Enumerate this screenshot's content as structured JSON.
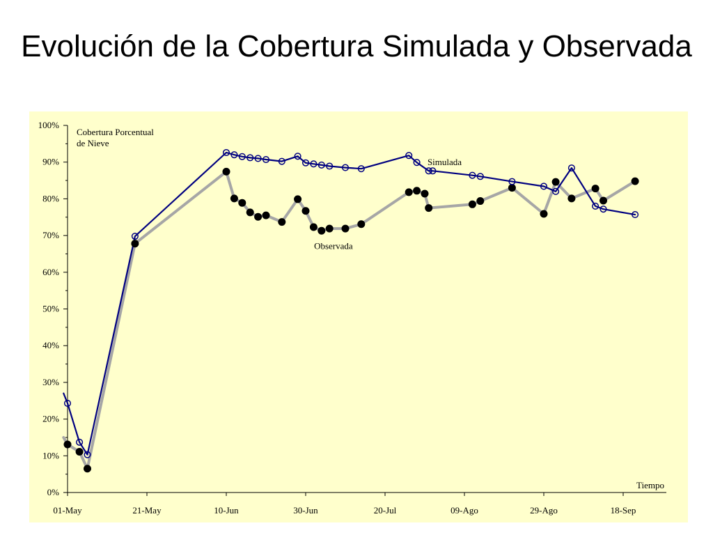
{
  "slide": {
    "title": "Evolución de la Cobertura Simulada y Observada"
  },
  "chart_data": {
    "type": "line",
    "title": "Evolución de la Cobertura Simulada y Observada",
    "ylabel": "Cobertura Porcentual de Nieve",
    "ylabel_lines": [
      "Cobertura Porcentual",
      "de Nieve"
    ],
    "xlabel": "Tiempo",
    "ylim": [
      0,
      100
    ],
    "y_ticks": [
      0,
      10,
      20,
      30,
      40,
      50,
      60,
      70,
      80,
      90,
      100
    ],
    "y_tick_labels": [
      "0%",
      "10%",
      "20%",
      "30%",
      "40%",
      "50%",
      "60%",
      "70%",
      "80%",
      "90%",
      "100%"
    ],
    "x_start": "2000-05-01",
    "x_ticks": [
      "2000-05-01",
      "2000-05-21",
      "2000-06-10",
      "2000-06-30",
      "2000-07-20",
      "2000-08-09",
      "2000-08-29",
      "2000-09-18"
    ],
    "x_tick_labels": [
      "01-May",
      "21-May",
      "10-Jun",
      "30-Jun",
      "20-Jul",
      "09-Ago",
      "29-Ago",
      "18-Sep"
    ],
    "grid": false,
    "plot_background": "#ffffcc",
    "series": [
      {
        "name": "Simulada",
        "color": "#000080",
        "marker": "open-circle",
        "lead_in": [
          "2000-04-30",
          27
        ],
        "points": [
          [
            "2000-05-01",
            24.3
          ],
          [
            "2000-05-04",
            13.7
          ],
          [
            "2000-05-06",
            10.3
          ],
          [
            "2000-05-18",
            69.8
          ],
          [
            "2000-06-10",
            92.6
          ],
          [
            "2000-06-12",
            92.0
          ],
          [
            "2000-06-14",
            91.5
          ],
          [
            "2000-06-16",
            91.2
          ],
          [
            "2000-06-18",
            91.0
          ],
          [
            "2000-06-20",
            90.7
          ],
          [
            "2000-06-24",
            90.2
          ],
          [
            "2000-06-28",
            91.6
          ],
          [
            "2000-06-30",
            89.8
          ],
          [
            "2000-07-02",
            89.5
          ],
          [
            "2000-07-04",
            89.2
          ],
          [
            "2000-07-06",
            88.9
          ],
          [
            "2000-07-10",
            88.5
          ],
          [
            "2000-07-14",
            88.2
          ],
          [
            "2000-07-26",
            91.8
          ],
          [
            "2000-07-28",
            89.9
          ],
          [
            "2000-07-31",
            87.6
          ],
          [
            "2000-08-01",
            87.6
          ],
          [
            "2000-08-11",
            86.4
          ],
          [
            "2000-08-13",
            86.1
          ],
          [
            "2000-08-21",
            84.7
          ],
          [
            "2000-08-29",
            83.4
          ],
          [
            "2000-09-01",
            82.0
          ],
          [
            "2000-09-05",
            88.4
          ],
          [
            "2000-09-11",
            78.0
          ],
          [
            "2000-09-13",
            77.2
          ],
          [
            "2000-09-21",
            75.7
          ]
        ]
      },
      {
        "name": "Observada",
        "color": "#a6a6a6",
        "marker": "filled-circle",
        "lead_in": [
          "2000-04-30",
          15
        ],
        "points": [
          [
            "2000-05-01",
            13.1
          ],
          [
            "2000-05-04",
            11.1
          ],
          [
            "2000-05-06",
            6.5
          ],
          [
            "2000-05-18",
            67.8
          ],
          [
            "2000-06-10",
            87.4
          ],
          [
            "2000-06-12",
            80.1
          ],
          [
            "2000-06-14",
            78.9
          ],
          [
            "2000-06-16",
            76.3
          ],
          [
            "2000-06-18",
            75.1
          ],
          [
            "2000-06-20",
            75.5
          ],
          [
            "2000-06-24",
            73.7
          ],
          [
            "2000-06-28",
            79.9
          ],
          [
            "2000-06-30",
            76.7
          ],
          [
            "2000-07-02",
            72.3
          ],
          [
            "2000-07-04",
            71.3
          ],
          [
            "2000-07-06",
            71.9
          ],
          [
            "2000-07-10",
            71.9
          ],
          [
            "2000-07-14",
            73.1
          ],
          [
            "2000-07-26",
            81.8
          ],
          [
            "2000-07-28",
            82.2
          ],
          [
            "2000-07-30",
            81.4
          ],
          [
            "2000-07-31",
            77.5
          ],
          [
            "2000-08-11",
            78.5
          ],
          [
            "2000-08-13",
            79.4
          ],
          [
            "2000-08-21",
            83.0
          ],
          [
            "2000-08-29",
            75.9
          ],
          [
            "2000-09-01",
            84.6
          ],
          [
            "2000-09-05",
            80.1
          ],
          [
            "2000-09-11",
            82.8
          ],
          [
            "2000-09-13",
            79.5
          ],
          [
            "2000-09-21",
            84.8
          ]
        ]
      }
    ],
    "annotations": [
      {
        "text": "Simulada",
        "date": "2000-08-04",
        "y": 89.2
      },
      {
        "text": "Observada",
        "date": "2000-07-07",
        "y": 66.3
      }
    ]
  }
}
